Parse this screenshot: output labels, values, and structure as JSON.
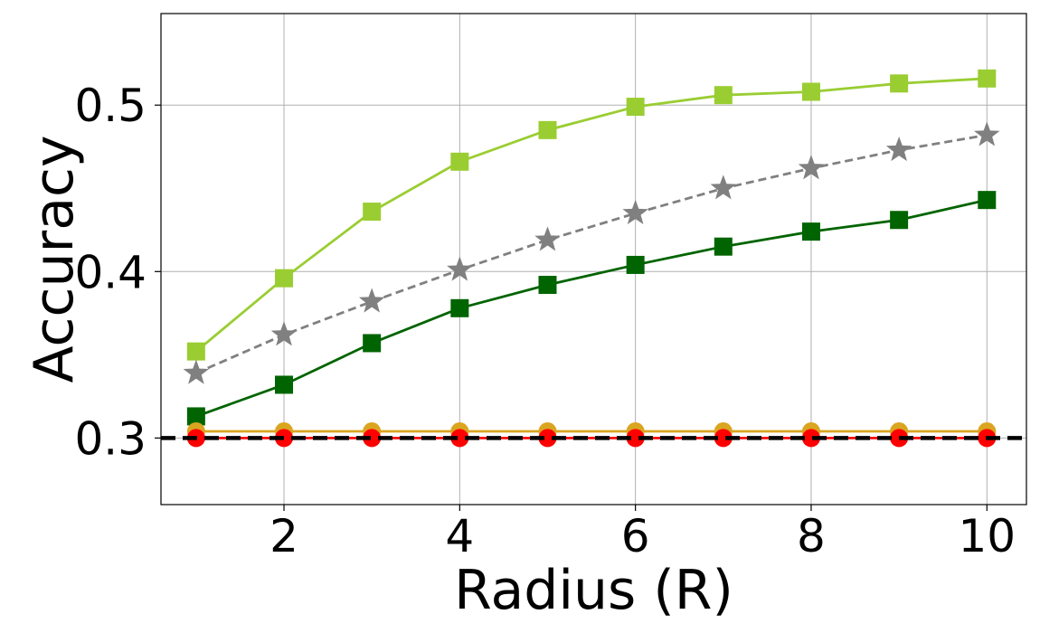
{
  "chart_data": {
    "type": "line",
    "title": "",
    "xlabel": "Radius (R)",
    "ylabel": "Accuracy",
    "x": [
      1,
      2,
      3,
      4,
      5,
      6,
      7,
      8,
      9,
      10
    ],
    "xlim": [
      0.6,
      10.45
    ],
    "ylim": [
      0.26,
      0.555
    ],
    "xticks": [
      2,
      4,
      6,
      8,
      10
    ],
    "yticks": [
      0.3,
      0.4,
      0.5
    ],
    "grid": true,
    "legend": "none",
    "series": [
      {
        "color": "#9acd32",
        "linestyle": "solid",
        "marker": "square",
        "values": [
          0.352,
          0.396,
          0.436,
          0.466,
          0.485,
          0.499,
          0.506,
          0.508,
          0.513,
          0.516
        ]
      },
      {
        "color": "#808080",
        "linestyle": "dashed",
        "marker": "star",
        "values": [
          0.339,
          0.362,
          0.382,
          0.401,
          0.419,
          0.435,
          0.45,
          0.462,
          0.473,
          0.482
        ]
      },
      {
        "color": "#006400",
        "linestyle": "solid",
        "marker": "square",
        "values": [
          0.313,
          0.332,
          0.357,
          0.378,
          0.392,
          0.404,
          0.415,
          0.424,
          0.431,
          0.443
        ]
      },
      {
        "color": "#daa520",
        "linestyle": "solid",
        "marker": "circle",
        "values": [
          0.304,
          0.304,
          0.304,
          0.304,
          0.304,
          0.304,
          0.304,
          0.304,
          0.304,
          0.304
        ]
      },
      {
        "color": "#ff0000",
        "linestyle": "solid",
        "marker": "circle",
        "values": [
          0.3,
          0.3,
          0.3,
          0.3,
          0.3,
          0.3,
          0.3,
          0.3,
          0.3,
          0.3
        ]
      }
    ],
    "reference_lines": [
      {
        "y": 0.3,
        "color": "#000000",
        "linestyle": "dashed"
      }
    ]
  }
}
